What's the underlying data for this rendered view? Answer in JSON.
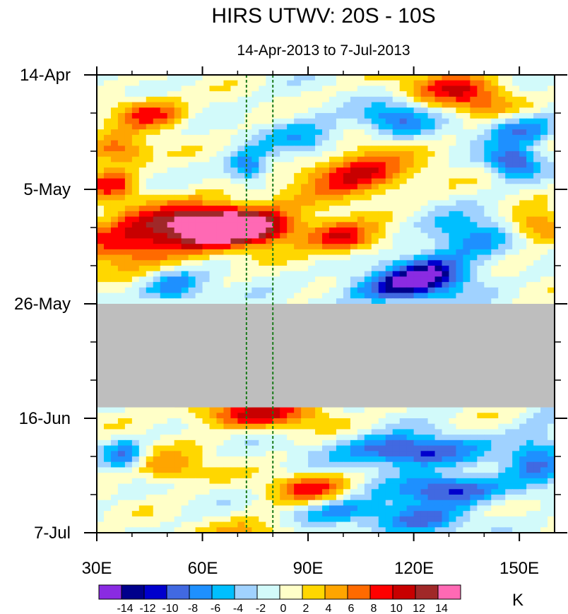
{
  "chart_data": {
    "type": "heatmap",
    "title": "HIRS UTWV: 20S - 10S",
    "subtitle": "14-Apr-2013 to 7-Jul-2013",
    "xlabel": "",
    "ylabel": "",
    "xlim": [
      30,
      160
    ],
    "x_ticks": [
      30,
      60,
      90,
      120,
      150
    ],
    "x_tick_labels": [
      "30E",
      "60E",
      "90E",
      "120E",
      "150E"
    ],
    "y_ticks_days": [
      0,
      21,
      42,
      63,
      84
    ],
    "y_tick_labels": [
      "14-Apr",
      "5-May",
      "26-May",
      "16-Jun",
      "7-Jul"
    ],
    "ylim_days": [
      0,
      84
    ],
    "missing_data_band_days": [
      42,
      61
    ],
    "reference_lines_lon": [
      72.5,
      80
    ],
    "colorbar": {
      "units": "K",
      "levels": [
        -14,
        -12,
        -10,
        -8,
        -6,
        -4,
        -2,
        0,
        2,
        4,
        6,
        8,
        10,
        12,
        14
      ],
      "colors": [
        "#8a2be2",
        "#00008b",
        "#0000cd",
        "#4169e1",
        "#1e90ff",
        "#00bfff",
        "#a0d2ff",
        "#d2fafa",
        "#ffffc8",
        "#ffd700",
        "#ffa500",
        "#ff6a00",
        "#ff0000",
        "#c80000",
        "#a02828",
        "#ff69b4"
      ],
      "tick_labels": [
        "-14",
        "-12",
        "-10",
        "-8",
        "-6",
        "-4",
        "-2",
        "0",
        "2",
        "4",
        "6",
        "8",
        "10",
        "12",
        "14"
      ]
    },
    "features": [
      {
        "lon": 70,
        "day": 28,
        "value": 14,
        "sx": 10,
        "sy": 2
      },
      {
        "lon": 62,
        "day": 27,
        "value": 11,
        "sx": 16,
        "sy": 3
      },
      {
        "lon": 40,
        "day": 31,
        "value": 9,
        "sx": 14,
        "sy": 3
      },
      {
        "lon": 100,
        "day": 30,
        "value": 10,
        "sx": 7,
        "sy": 2
      },
      {
        "lon": 103,
        "day": 18,
        "value": 11,
        "sx": 11,
        "sy": 3
      },
      {
        "lon": 45,
        "day": 7,
        "value": 9,
        "sx": 7,
        "sy": 2
      },
      {
        "lon": 36,
        "day": 14,
        "value": 8,
        "sx": 6,
        "sy": 2
      },
      {
        "lon": 34,
        "day": 20,
        "value": 8,
        "sx": 5,
        "sy": 2
      },
      {
        "lon": 130,
        "day": 2,
        "value": 8,
        "sx": 9,
        "sy": 2
      },
      {
        "lon": 155,
        "day": 28,
        "value": 7,
        "sx": 6,
        "sy": 2
      },
      {
        "lon": 75,
        "day": 62,
        "value": 10,
        "sx": 13,
        "sy": 2
      },
      {
        "lon": 92,
        "day": 76,
        "value": 9,
        "sx": 8,
        "sy": 2
      },
      {
        "lon": 50,
        "day": 72,
        "value": 6,
        "sx": 8,
        "sy": 2
      },
      {
        "lon": 75,
        "day": 84,
        "value": 5,
        "sx": 9,
        "sy": 2
      },
      {
        "lon": 140,
        "day": 5,
        "value": 6,
        "sx": 8,
        "sy": 2
      },
      {
        "lon": 116,
        "day": 39,
        "value": -12,
        "sx": 10,
        "sy": 2
      },
      {
        "lon": 125,
        "day": 36,
        "value": -10,
        "sx": 8,
        "sy": 2
      },
      {
        "lon": 148,
        "day": 16,
        "value": -10,
        "sx": 5,
        "sy": 2
      },
      {
        "lon": 150,
        "day": 10,
        "value": -8,
        "sx": 7,
        "sy": 2
      },
      {
        "lon": 115,
        "day": 8,
        "value": -8,
        "sx": 7,
        "sy": 2
      },
      {
        "lon": 73,
        "day": 17,
        "value": -9,
        "sx": 4,
        "sy": 2
      },
      {
        "lon": 52,
        "day": 39,
        "value": -8,
        "sx": 6,
        "sy": 2
      },
      {
        "lon": 118,
        "day": 69,
        "value": -12,
        "sx": 13,
        "sy": 2
      },
      {
        "lon": 130,
        "day": 76,
        "value": -11,
        "sx": 11,
        "sy": 2
      },
      {
        "lon": 100,
        "day": 80,
        "value": -8,
        "sx": 9,
        "sy": 2
      },
      {
        "lon": 122,
        "day": 82,
        "value": -8,
        "sx": 8,
        "sy": 2
      },
      {
        "lon": 38,
        "day": 70,
        "value": -8,
        "sx": 4,
        "sy": 2
      },
      {
        "lon": 135,
        "day": 30,
        "value": -7,
        "sx": 9,
        "sy": 3
      },
      {
        "lon": 90,
        "day": 12,
        "value": -6,
        "sx": 8,
        "sy": 3
      },
      {
        "lon": 155,
        "day": 70,
        "value": -7,
        "sx": 6,
        "sy": 4
      }
    ]
  }
}
